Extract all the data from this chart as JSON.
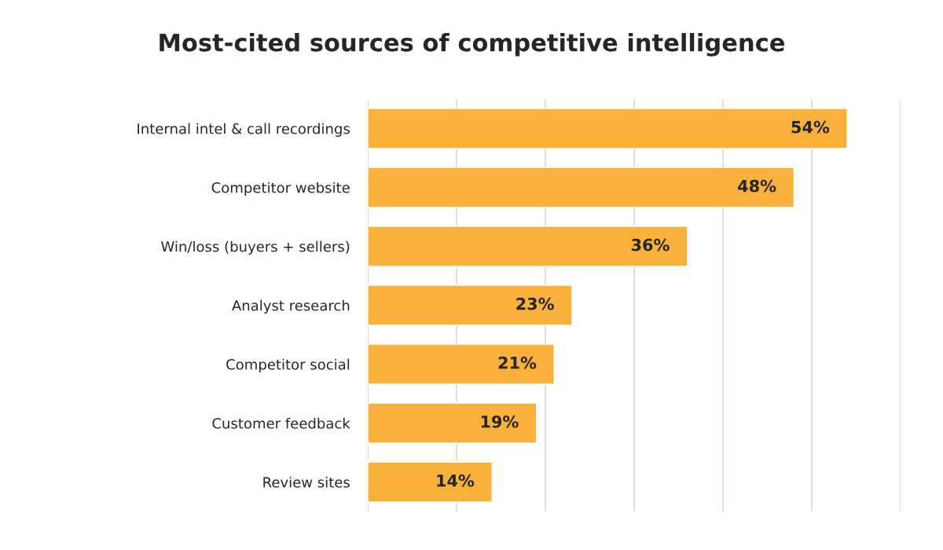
{
  "chart_data": {
    "type": "bar",
    "orientation": "horizontal",
    "title": "Most-cited sources of competitive intelligence",
    "categories": [
      "Internal intel & call recordings",
      "Competitor website",
      "Win/loss (buyers + sellers)",
      "Analyst research",
      "Competitor social",
      "Customer feedback",
      "Review sites"
    ],
    "values": [
      54,
      48,
      36,
      23,
      21,
      19,
      14
    ],
    "value_labels": [
      "54%",
      "48%",
      "36%",
      "23%",
      "21%",
      "19%",
      "14%"
    ],
    "color": "#f9b13c",
    "xlim": [
      0,
      60
    ],
    "xticks": [
      {
        "value": 0,
        "label": null
      },
      {
        "value": 10,
        "label": null
      },
      {
        "value": 20,
        "label": null
      },
      {
        "value": 30,
        "label": null
      },
      {
        "value": 40,
        "label": null
      },
      {
        "value": 50,
        "label": null
      },
      {
        "value": 60,
        "label": null
      }
    ],
    "grid": "x",
    "tick_labels": "y"
  }
}
